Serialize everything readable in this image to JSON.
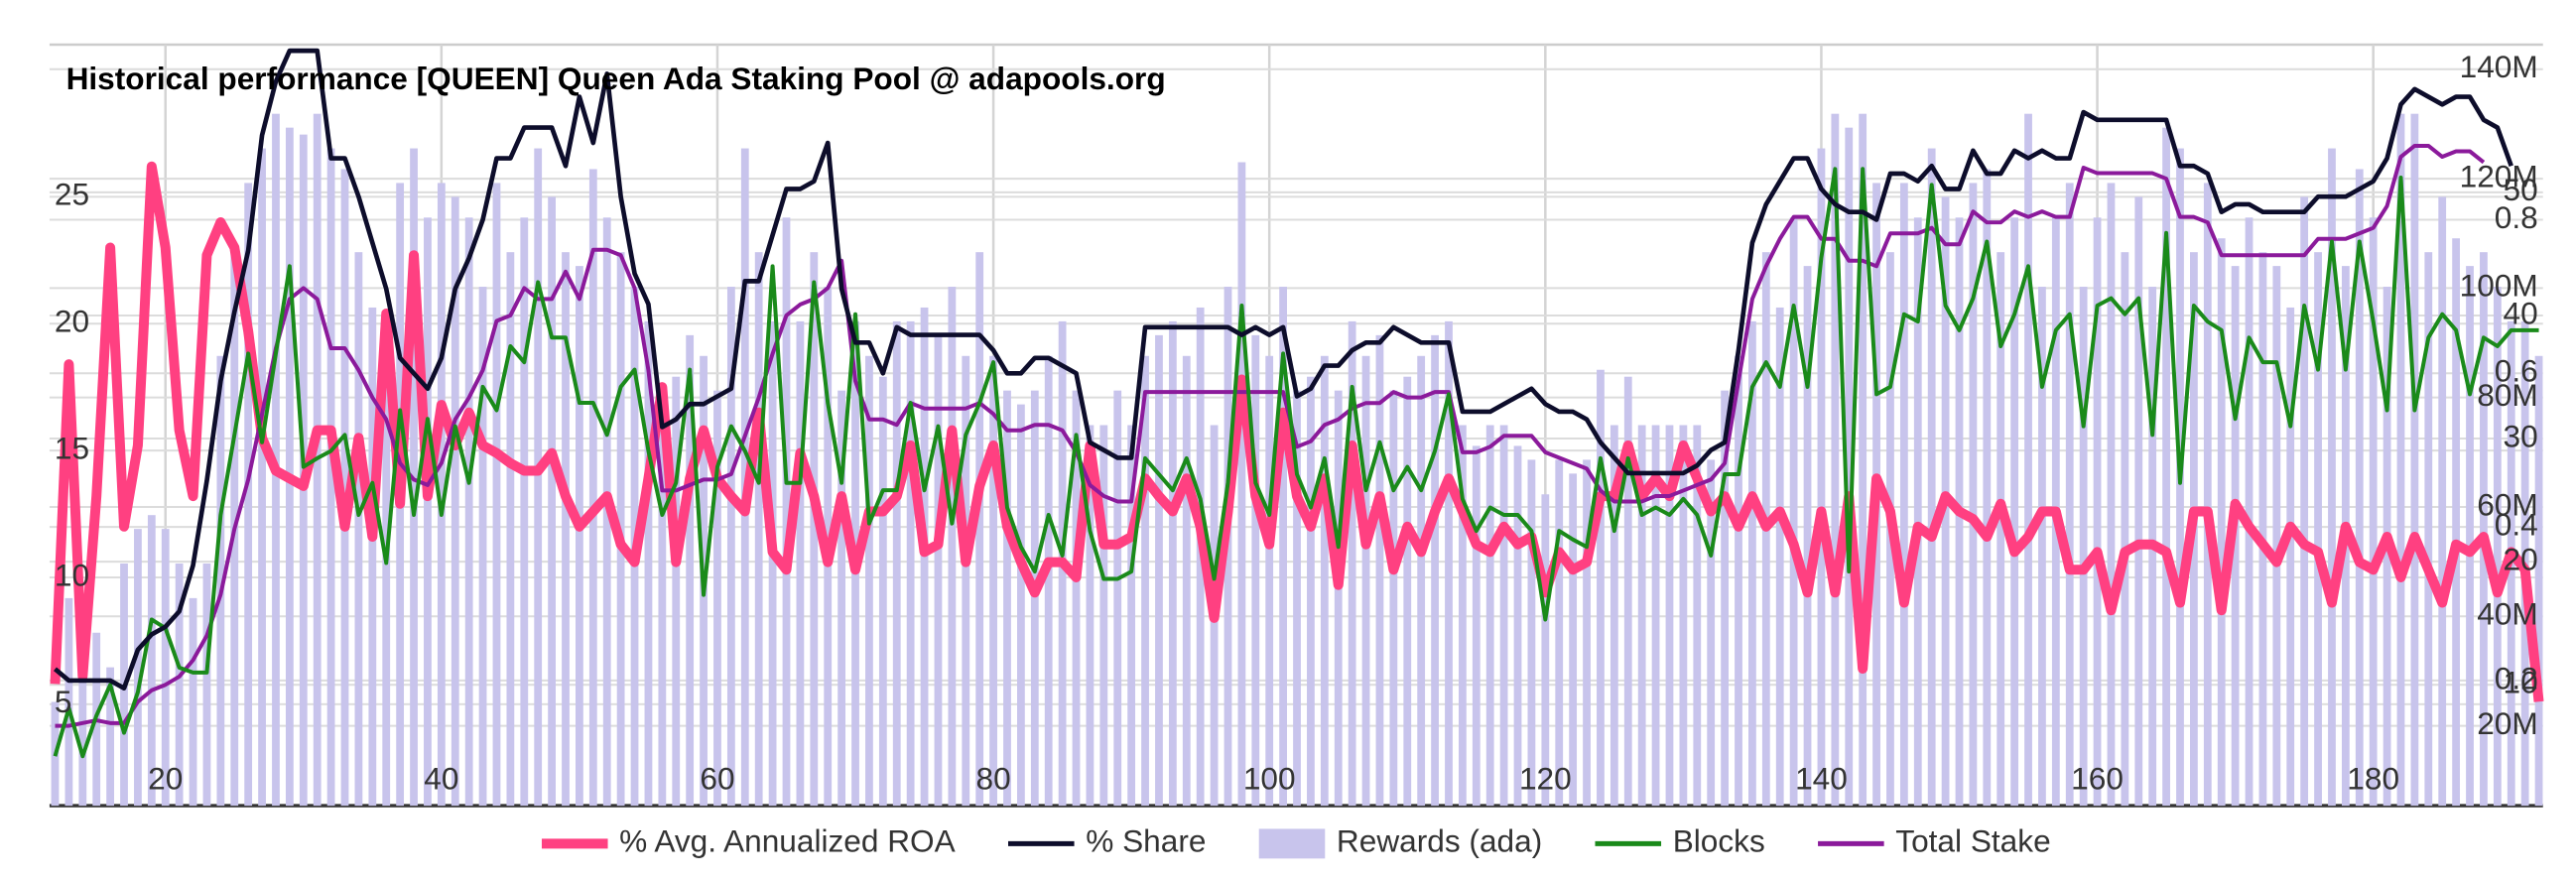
{
  "chart_data": {
    "type": "line",
    "title": "Historical performance [QUEEN] Queen Ada Staking Pool @ adapools.org",
    "grid": true,
    "legend": "bottom",
    "x": [
      12,
      13,
      14,
      15,
      16,
      17,
      18,
      19,
      20,
      21,
      22,
      23,
      24,
      25,
      26,
      27,
      28,
      29,
      30,
      31,
      32,
      33,
      34,
      35,
      36,
      37,
      38,
      39,
      40,
      41,
      42,
      43,
      44,
      45,
      46,
      47,
      48,
      49,
      50,
      51,
      52,
      53,
      54,
      55,
      56,
      57,
      58,
      59,
      60,
      61,
      62,
      63,
      64,
      65,
      66,
      67,
      68,
      69,
      70,
      71,
      72,
      73,
      74,
      75,
      76,
      77,
      78,
      79,
      80,
      81,
      82,
      83,
      84,
      85,
      86,
      87,
      88,
      89,
      90,
      91,
      92,
      93,
      94,
      95,
      96,
      97,
      98,
      99,
      100,
      101,
      102,
      103,
      104,
      105,
      106,
      107,
      108,
      109,
      110,
      111,
      112,
      113,
      114,
      115,
      116,
      117,
      118,
      119,
      120,
      121,
      122,
      123,
      124,
      125,
      126,
      127,
      128,
      129,
      130,
      131,
      132,
      133,
      134,
      135,
      136,
      137,
      138,
      139,
      140,
      141,
      142,
      143,
      144,
      145,
      146,
      147,
      148,
      149,
      150,
      151,
      152,
      153,
      154,
      155,
      156,
      157,
      158,
      159,
      160,
      161,
      162,
      163,
      164,
      165,
      166,
      167,
      168,
      169,
      170,
      171,
      172,
      173,
      174,
      175,
      176,
      177,
      178,
      179,
      180,
      181,
      182,
      183,
      184,
      185,
      186,
      187,
      188,
      189,
      190,
      191,
      192
    ],
    "xlim": [
      11.6,
      192.3
    ],
    "xticks": [
      20,
      40,
      60,
      80,
      100,
      120,
      140,
      160,
      180
    ],
    "ylim": [
      1,
      31
    ],
    "yticks": [
      5,
      10,
      15,
      20,
      25
    ],
    "y2lim": [
      0.037,
      1.028
    ],
    "y2ticks": [
      0.2,
      0.4,
      0.6,
      0.8
    ],
    "y3lim": [
      0.18,
      62
    ],
    "y3ticks": [
      10,
      20,
      30,
      40,
      50
    ],
    "y4lim": [
      5400000,
      144500000
    ],
    "y4ticks": [
      {
        "value": 20000000,
        "label": "20M"
      },
      {
        "value": 40000000,
        "label": "40M"
      },
      {
        "value": 60000000,
        "label": "60M"
      },
      {
        "value": 80000000,
        "label": "80M"
      },
      {
        "value": 100000000,
        "label": "100M"
      },
      {
        "value": 120000000,
        "label": "120M"
      },
      {
        "value": 140000000,
        "label": "140M"
      }
    ],
    "y5lim": [
      0,
      110
    ],
    "series": [
      {
        "name": "% Avg. Annualized ROA",
        "color": "#ff4081",
        "axis": "y",
        "values": [
          5.8,
          18.4,
          6.1,
          13.2,
          23,
          12,
          15.2,
          26.2,
          23,
          15.8,
          13.2,
          22.7,
          24,
          23,
          19.7,
          15.5,
          14.2,
          13.9,
          13.6,
          15.8,
          15.8,
          12,
          15.5,
          11.6,
          20.4,
          12.9,
          22.7,
          13.2,
          16.8,
          15.2,
          16.5,
          15.2,
          14.9,
          14.5,
          14.2,
          14.2,
          14.9,
          13.2,
          12,
          12.6,
          13.2,
          11.3,
          10.6,
          13.9,
          17.5,
          10.6,
          13.9,
          15.8,
          13.9,
          13.2,
          12.6,
          16.5,
          11,
          10.3,
          14.9,
          13.2,
          10.6,
          13.2,
          10.3,
          12.6,
          12.6,
          13.2,
          15.2,
          11,
          11.3,
          15.8,
          10.6,
          13.6,
          15.2,
          12,
          10.6,
          9.4,
          10.6,
          10.6,
          10,
          15.2,
          11.3,
          11.3,
          11.6,
          13.9,
          13.2,
          12.6,
          13.9,
          12,
          8.4,
          12.6,
          17.8,
          13.2,
          11.3,
          16.5,
          13.2,
          12,
          13.9,
          9.7,
          15.2,
          11.3,
          13.2,
          10.3,
          12,
          11,
          12.6,
          13.9,
          12.6,
          11.3,
          11,
          12,
          11.3,
          11.6,
          9.4,
          11,
          10.3,
          10.6,
          13.2,
          13.2,
          15.2,
          13.2,
          13.9,
          13.2,
          15.2,
          13.9,
          12.6,
          13.2,
          12,
          13.2,
          12,
          12.6,
          11.3,
          9.4,
          12.6,
          9.4,
          13.2,
          6.4,
          13.9,
          12.6,
          9,
          12,
          11.6,
          13.2,
          12.6,
          12.3,
          11.6,
          12.9,
          11,
          11.6,
          12.6,
          12.6,
          10.3,
          10.3,
          11,
          8.7,
          11,
          11.3,
          11.3,
          11,
          9,
          12.6,
          12.6,
          8.7,
          12.9,
          12,
          11.3,
          10.6,
          12,
          11.3,
          11,
          9,
          12,
          10.6,
          10.3,
          11.6,
          10,
          11.6,
          10.3,
          9,
          11.3,
          11,
          11.6,
          9.4,
          11,
          10.3,
          5.1
        ]
      },
      {
        "name": "% Share",
        "color": "#0d0d2b",
        "axis": "y2",
        "values": [
          0.215,
          0.2,
          0.2,
          0.2,
          0.2,
          0.19,
          0.24,
          0.26,
          0.27,
          0.29,
          0.35,
          0.46,
          0.59,
          0.68,
          0.76,
          0.91,
          0.98,
          1.02,
          1.02,
          1.02,
          0.88,
          0.88,
          0.83,
          0.77,
          0.71,
          0.62,
          0.6,
          0.58,
          0.62,
          0.71,
          0.75,
          0.8,
          0.88,
          0.88,
          0.92,
          0.92,
          0.92,
          0.87,
          0.96,
          0.9,
          0.99,
          0.83,
          0.73,
          0.69,
          0.53,
          0.54,
          0.56,
          0.56,
          0.57,
          0.58,
          0.72,
          0.72,
          0.78,
          0.84,
          0.84,
          0.85,
          0.9,
          0.71,
          0.64,
          0.64,
          0.6,
          0.66,
          0.65,
          0.65,
          0.65,
          0.65,
          0.65,
          0.65,
          0.63,
          0.6,
          0.6,
          0.62,
          0.62,
          0.61,
          0.6,
          0.51,
          0.5,
          0.49,
          0.49,
          0.66,
          0.66,
          0.66,
          0.66,
          0.66,
          0.66,
          0.66,
          0.65,
          0.66,
          0.65,
          0.66,
          0.57,
          0.58,
          0.61,
          0.61,
          0.63,
          0.64,
          0.64,
          0.66,
          0.65,
          0.64,
          0.64,
          0.64,
          0.55,
          0.55,
          0.55,
          0.56,
          0.57,
          0.58,
          0.56,
          0.55,
          0.55,
          0.54,
          0.51,
          0.49,
          0.47,
          0.47,
          0.47,
          0.47,
          0.47,
          0.48,
          0.5,
          0.51,
          0.63,
          0.77,
          0.82,
          0.85,
          0.88,
          0.88,
          0.84,
          0.82,
          0.81,
          0.81,
          0.8,
          0.86,
          0.86,
          0.85,
          0.87,
          0.84,
          0.84,
          0.89,
          0.86,
          0.86,
          0.89,
          0.88,
          0.89,
          0.88,
          0.88,
          0.94,
          0.93,
          0.93,
          0.93,
          0.93,
          0.93,
          0.93,
          0.87,
          0.87,
          0.86,
          0.81,
          0.82,
          0.82,
          0.81,
          0.81,
          0.81,
          0.81,
          0.83,
          0.83,
          0.83,
          0.84,
          0.85,
          0.88,
          0.95,
          0.97,
          0.96,
          0.95,
          0.96,
          0.96,
          0.93,
          0.92,
          0.87,
          null,
          null
        ]
      },
      {
        "name": "Rewards (ada)",
        "color": "#c8c4ec",
        "axis": "y5",
        "type": "bar",
        "values": [
          15,
          30,
          20,
          25,
          20,
          35,
          40,
          42,
          40,
          35,
          30,
          35,
          65,
          80,
          90,
          95,
          100,
          98,
          97,
          100,
          95,
          92,
          80,
          72,
          70,
          90,
          95,
          85,
          90,
          88,
          85,
          75,
          90,
          80,
          85,
          95,
          88,
          80,
          78,
          92,
          85,
          80,
          75,
          70,
          60,
          62,
          68,
          65,
          60,
          75,
          95,
          80,
          70,
          85,
          70,
          80,
          75,
          60,
          70,
          65,
          62,
          70,
          70,
          72,
          68,
          75,
          65,
          80,
          65,
          60,
          58,
          60,
          65,
          70,
          60,
          55,
          55,
          60,
          55,
          65,
          68,
          70,
          65,
          72,
          55,
          75,
          93,
          68,
          65,
          75,
          60,
          62,
          65,
          60,
          70,
          65,
          68,
          60,
          62,
          65,
          68,
          70,
          55,
          52,
          55,
          55,
          52,
          50,
          45,
          50,
          48,
          50,
          63,
          55,
          62,
          55,
          55,
          55,
          55,
          55,
          50,
          60,
          65,
          70,
          80,
          72,
          85,
          78,
          95,
          100,
          98,
          100,
          90,
          80,
          90,
          85,
          95,
          88,
          85,
          90,
          92,
          80,
          85,
          100,
          75,
          85,
          90,
          75,
          85,
          90,
          80,
          88,
          75,
          98,
          95,
          80,
          90,
          82,
          78,
          85,
          80,
          78,
          72,
          88,
          80,
          95,
          78,
          92,
          85,
          75,
          100,
          100,
          80,
          88,
          82,
          78,
          80,
          75,
          70,
          70,
          65
        ]
      },
      {
        "name": "Blocks",
        "color": "#1a8a1a",
        "axis": "y3",
        "values": [
          4.2,
          8.1,
          4.2,
          7.5,
          10,
          6.1,
          9.4,
          15.3,
          14.6,
          11.4,
          11,
          11,
          23.8,
          30.3,
          36.9,
          29.7,
          36.9,
          44,
          27.7,
          28.4,
          29,
          30.3,
          23.8,
          26.4,
          19.9,
          32.3,
          23.8,
          31.6,
          23.8,
          31,
          26.4,
          34.2,
          32.3,
          37.5,
          36.2,
          42.7,
          38.2,
          38.2,
          32.9,
          32.9,
          30.3,
          34.2,
          35.6,
          29,
          23.8,
          26.4,
          35.6,
          17.3,
          27.7,
          31,
          29,
          26.4,
          44,
          26.4,
          26.4,
          42.7,
          32.9,
          26.4,
          40.1,
          23.1,
          25.8,
          25.8,
          32.9,
          25.8,
          31,
          23.1,
          30.3,
          32.9,
          36.2,
          24.4,
          21.2,
          19.2,
          23.8,
          20.5,
          30.3,
          22.5,
          18.6,
          18.6,
          19.2,
          28.4,
          27.1,
          25.8,
          28.4,
          25.1,
          18.6,
          26.4,
          40.8,
          26.4,
          23.8,
          36.9,
          27.1,
          24.4,
          28.4,
          21.2,
          34.2,
          25.8,
          29.7,
          25.8,
          27.7,
          25.8,
          29,
          33.6,
          25.1,
          22.5,
          24.4,
          23.8,
          23.8,
          22.5,
          15.3,
          22.5,
          21.8,
          21.2,
          28.4,
          22.5,
          28.4,
          23.8,
          24.4,
          23.8,
          25.1,
          23.8,
          20.5,
          27.1,
          27.1,
          34.2,
          36.2,
          34.2,
          40.8,
          34.2,
          44.7,
          51.9,
          19.2,
          51.9,
          33.6,
          34.2,
          40.1,
          39.5,
          50.6,
          40.8,
          38.8,
          41.4,
          46,
          37.5,
          40.1,
          44,
          34.2,
          38.8,
          40.1,
          31,
          40.8,
          41.4,
          40.1,
          41.4,
          30.3,
          46.7,
          26.4,
          40.8,
          39.5,
          38.8,
          31.6,
          38.2,
          36.2,
          36.2,
          31,
          40.8,
          35.6,
          46,
          35.6,
          46,
          39.5,
          32.3,
          51.2,
          32.3,
          38.2,
          40.1,
          38.8,
          33.6,
          38.2,
          37.5,
          38.8,
          38.8,
          38.8
        ]
      },
      {
        "name": "Total Stake",
        "color": "#8b1a9b",
        "axis": "y4",
        "values": [
          20000000,
          20000000,
          20500000,
          21000000,
          20500000,
          20500000,
          24400000,
          26500000,
          27500000,
          29000000,
          32000000,
          36500000,
          44000000,
          56000000,
          65000000,
          77000000,
          89000000,
          98000000,
          100000000,
          98000000,
          89000000,
          89000000,
          85000000,
          80000000,
          76000000,
          68000000,
          65000000,
          64000000,
          68000000,
          76000000,
          80000000,
          85000000,
          94000000,
          95000000,
          100000000,
          98000000,
          98000000,
          103000000,
          98000000,
          107000000,
          107000000,
          106000000,
          100000000,
          85000000,
          63000000,
          63000000,
          64000000,
          65000000,
          65000000,
          66000000,
          73000000,
          80000000,
          88000000,
          95000000,
          97000000,
          98000000,
          100000000,
          105000000,
          83000000,
          76000000,
          76000000,
          75000000,
          79000000,
          78000000,
          78000000,
          78000000,
          78000000,
          79000000,
          77000000,
          74000000,
          74000000,
          75000000,
          75000000,
          74000000,
          70000000,
          64000000,
          62000000,
          61000000,
          61000000,
          81000000,
          81000000,
          81000000,
          81000000,
          81000000,
          81000000,
          81000000,
          81000000,
          81000000,
          81000000,
          81000000,
          71000000,
          72000000,
          75000000,
          76000000,
          78000000,
          79000000,
          79000000,
          81000000,
          80000000,
          80000000,
          81000000,
          81000000,
          70000000,
          70000000,
          71000000,
          73000000,
          73000000,
          73000000,
          70000000,
          69000000,
          68000000,
          67000000,
          63000000,
          61000000,
          61000000,
          61000000,
          62000000,
          62000000,
          63000000,
          64000000,
          65000000,
          68000000,
          83000000,
          98000000,
          104000000,
          109000000,
          113000000,
          113000000,
          109000000,
          109000000,
          105000000,
          105000000,
          104000000,
          110000000,
          110000000,
          110000000,
          111000000,
          108000000,
          108000000,
          114000000,
          112000000,
          112000000,
          114000000,
          113000000,
          114000000,
          113000000,
          113000000,
          122000000,
          121000000,
          121000000,
          121000000,
          121000000,
          121000000,
          120000000,
          113000000,
          113000000,
          112000000,
          106000000,
          106000000,
          106000000,
          106000000,
          106000000,
          106000000,
          106000000,
          109000000,
          109000000,
          109000000,
          110000000,
          111000000,
          115000000,
          124000000,
          126000000,
          126000000,
          124000000,
          125000000,
          125000000,
          123000000,
          null,
          null,
          null,
          null
        ]
      }
    ]
  }
}
